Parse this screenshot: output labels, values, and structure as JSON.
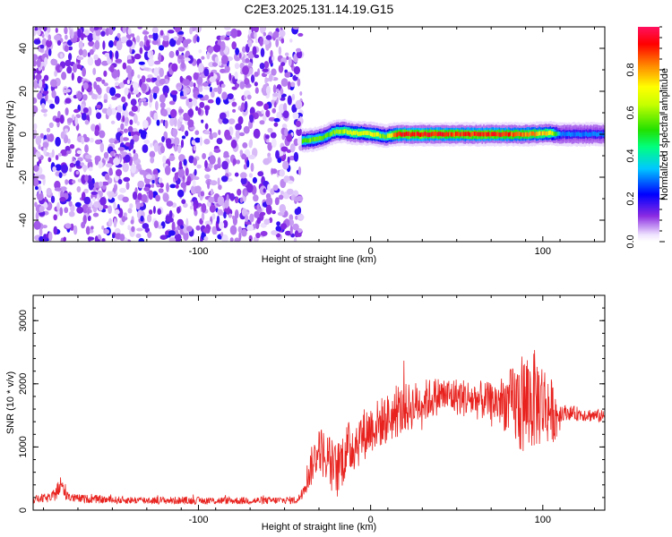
{
  "title": "C2E3.2025.131.14.19.G15",
  "chart_data": [
    {
      "type": "heatmap",
      "xlabel": "Height of straight line (km)",
      "ylabel": "Frequency (Hz)",
      "xlim": [
        -196,
        136
      ],
      "ylim": [
        -50,
        50
      ],
      "x_ticks": [
        -100,
        0,
        100
      ],
      "y_ticks": [
        -40,
        -20,
        0,
        20,
        40
      ],
      "x_tick_labels": [
        "-100",
        "0",
        "100"
      ],
      "y_tick_labels": [
        "-40",
        "-20",
        "0",
        "20",
        "40"
      ],
      "noise_region_x": [
        -196,
        -40
      ],
      "noise_level": 0.15,
      "signal_track": [
        {
          "x": -40,
          "f": -3.0,
          "amp": 0.55
        },
        {
          "x": -34,
          "f": -2.5,
          "amp": 0.6
        },
        {
          "x": -28,
          "f": -1.5,
          "amp": 0.55
        },
        {
          "x": -22,
          "f": 1.0,
          "amp": 0.6
        },
        {
          "x": -16,
          "f": 1.5,
          "amp": 0.65
        },
        {
          "x": -10,
          "f": 0.5,
          "amp": 0.7
        },
        {
          "x": -4,
          "f": 0.5,
          "amp": 0.7
        },
        {
          "x": 2,
          "f": 0.0,
          "amp": 0.72
        },
        {
          "x": 8,
          "f": -1.0,
          "amp": 0.55
        },
        {
          "x": 14,
          "f": 0.0,
          "amp": 0.9
        },
        {
          "x": 30,
          "f": 0.0,
          "amp": 0.95
        },
        {
          "x": 50,
          "f": 0.0,
          "amp": 0.9
        },
        {
          "x": 70,
          "f": 0.0,
          "amp": 0.92
        },
        {
          "x": 90,
          "f": 0.0,
          "amp": 0.85
        },
        {
          "x": 104,
          "f": 0.5,
          "amp": 0.75
        },
        {
          "x": 110,
          "f": 0.0,
          "amp": 0.3
        },
        {
          "x": 136,
          "f": 0.0,
          "amp": 0.3
        }
      ],
      "colorbar": {
        "label": "Normalized spectral amplitude",
        "range": [
          0,
          1
        ],
        "ticks": [
          0.0,
          0.2,
          0.4,
          0.6,
          0.8
        ],
        "tick_labels": [
          "0.0",
          "0.2",
          "0.4",
          "0.6",
          "0.8"
        ]
      }
    },
    {
      "type": "line",
      "xlabel": "Height of straight line (km)",
      "ylabel": "SNR (10 * v/v)",
      "xlim": [
        -196,
        136
      ],
      "ylim": [
        0,
        3400
      ],
      "x_ticks": [
        -100,
        0,
        100
      ],
      "y_ticks": [
        0,
        1000,
        2000,
        3000
      ],
      "x_tick_labels": [
        "-100",
        "0",
        "100"
      ],
      "y_tick_labels": [
        "0",
        "1000",
        "2000",
        "3000"
      ],
      "series": [
        {
          "color": "#e8231f",
          "profile": [
            {
              "x": -196,
              "y": 170,
              "spread": 60
            },
            {
              "x": -185,
              "y": 200,
              "spread": 80
            },
            {
              "x": -180,
              "y": 380,
              "spread": 180
            },
            {
              "x": -174,
              "y": 190,
              "spread": 70
            },
            {
              "x": -150,
              "y": 160,
              "spread": 60
            },
            {
              "x": -100,
              "y": 150,
              "spread": 60
            },
            {
              "x": -60,
              "y": 150,
              "spread": 60
            },
            {
              "x": -42,
              "y": 160,
              "spread": 60
            },
            {
              "x": -35,
              "y": 650,
              "spread": 300
            },
            {
              "x": -30,
              "y": 1000,
              "spread": 350
            },
            {
              "x": -25,
              "y": 800,
              "spread": 450
            },
            {
              "x": -20,
              "y": 600,
              "spread": 450
            },
            {
              "x": -15,
              "y": 900,
              "spread": 450
            },
            {
              "x": -8,
              "y": 1100,
              "spread": 450
            },
            {
              "x": 0,
              "y": 1300,
              "spread": 400
            },
            {
              "x": 10,
              "y": 1450,
              "spread": 400
            },
            {
              "x": 20,
              "y": 1600,
              "spread": 400
            },
            {
              "x": 30,
              "y": 1720,
              "spread": 350
            },
            {
              "x": 40,
              "y": 1820,
              "spread": 300
            },
            {
              "x": 50,
              "y": 1800,
              "spread": 300
            },
            {
              "x": 60,
              "y": 1750,
              "spread": 320
            },
            {
              "x": 70,
              "y": 1720,
              "spread": 300
            },
            {
              "x": 80,
              "y": 1700,
              "spread": 500
            },
            {
              "x": 88,
              "y": 1650,
              "spread": 850
            },
            {
              "x": 95,
              "y": 1750,
              "spread": 800
            },
            {
              "x": 100,
              "y": 1700,
              "spread": 700
            },
            {
              "x": 108,
              "y": 1500,
              "spread": 400
            },
            {
              "x": 112,
              "y": 1550,
              "spread": 120
            },
            {
              "x": 136,
              "y": 1480,
              "spread": 100
            }
          ]
        }
      ]
    }
  ],
  "colors": {
    "axis": "#000000",
    "line": "#e8231f"
  }
}
